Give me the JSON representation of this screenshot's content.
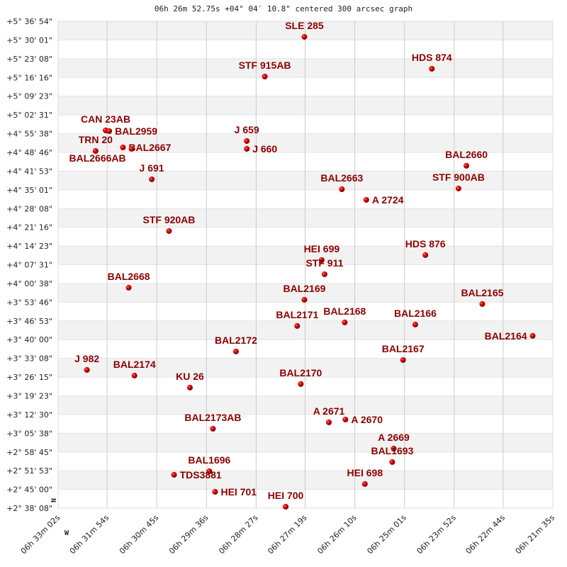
{
  "chart_data": {
    "type": "scatter",
    "title": "06h 26m 52.75s +04° 04′ 10.8\" centered 300 arcsec graph",
    "grid": true,
    "marker_color": "#dd0000",
    "label_color": "#8b0000",
    "stripe_color": "#f2f2f2",
    "grid_color": "#cccccc",
    "directions": {
      "north": "N",
      "west": "W"
    },
    "x_ticks": [
      "06h 33m 02s",
      "06h 31m 54s",
      "06h 30m 45s",
      "06h 29m 36s",
      "06h 28m 27s",
      "06h 27m 19s",
      "06h 26m 10s",
      "06h 25m 01s",
      "06h 23m 52s",
      "06h 22m 44s",
      "06h 21m 35s"
    ],
    "y_ticks": [
      "+5° 36' 54\"",
      "+5° 30' 01\"",
      "+5° 23' 08\"",
      "+5° 16' 16\"",
      "+5° 09' 23\"",
      "+5° 02' 31\"",
      "+4° 55' 38\"",
      "+4° 48' 46\"",
      "+4° 41' 53\"",
      "+4° 35' 01\"",
      "+4° 28' 08\"",
      "+4° 21' 16\"",
      "+4° 14' 23\"",
      "+4° 07' 31\"",
      "+4° 00' 38\"",
      "+3° 53' 46\"",
      "+3° 46' 53\"",
      "+3° 40' 00\"",
      "+3° 33' 08\"",
      "+3° 26' 15\"",
      "+3° 19' 23\"",
      "+3° 12' 30\"",
      "+3° 05' 38\"",
      "+2° 58' 45\"",
      "+2° 51' 53\"",
      "+2° 45' 00\"",
      "+2° 38' 08\""
    ],
    "points": [
      {
        "name": "SLE 285",
        "ra": "06h 27m 20s",
        "dec": "+5° 31' 11\""
      },
      {
        "name": "HDS 874",
        "ra": "06h 24m 23s",
        "dec": "+5° 19' 28\""
      },
      {
        "name": "STF 915AB",
        "ra": "06h 28m 15s",
        "dec": "+5° 16' 36\""
      },
      {
        "name": "CAN 23AB",
        "ra": "06h 31m 56s",
        "dec": "+4° 56' 50\""
      },
      {
        "name": "BAL2959",
        "ra": "06h 31m 51s",
        "dec": "+4° 56' 34\""
      },
      {
        "name": "TRN 20",
        "ra": "06h 32m 10s",
        "dec": "+4° 49' 17\""
      },
      {
        "name": "BAL2667",
        "ra": "06h 31m 32s",
        "dec": "+4° 50' 35\""
      },
      {
        "name": "BAL2666AB",
        "ra": "06h 31m 20s",
        "dec": "+4° 50' 04\""
      },
      {
        "name": "J 659",
        "ra": "06h 28m 40s",
        "dec": "+4° 52' 56\""
      },
      {
        "name": "J 660",
        "ra": "06h 28m 40s",
        "dec": "+4° 50' 04\""
      },
      {
        "name": "J 691",
        "ra": "06h 30m 52s",
        "dec": "+4° 38' 53\""
      },
      {
        "name": "BAL2660",
        "ra": "06h 23m 35s",
        "dec": "+4° 43' 50\""
      },
      {
        "name": "STF 900AB",
        "ra": "06h 23m 46s",
        "dec": "+4° 35' 30\""
      },
      {
        "name": "BAL2663",
        "ra": "06h 26m 28s",
        "dec": "+4° 35' 14\""
      },
      {
        "name": "A 2724",
        "ra": "06h 25m 54s",
        "dec": "+4° 31' 20\""
      },
      {
        "name": "STF 920AB",
        "ra": "06h 30m 28s",
        "dec": "+4° 19' 53\""
      },
      {
        "name": "HDS 876",
        "ra": "06h 24m 32s",
        "dec": "+4° 11' 03\""
      },
      {
        "name": "HEI 699",
        "ra": "06h 26m 56s",
        "dec": "+4° 09' 13\""
      },
      {
        "name": "STF 911",
        "ra": "06h 26m 52s",
        "dec": "+4° 04' 01\""
      },
      {
        "name": "BAL2668",
        "ra": "06h 31m 24s",
        "dec": "+3° 59' 05\""
      },
      {
        "name": "BAL2169",
        "ra": "06h 27m 20s",
        "dec": "+3° 54' 39\""
      },
      {
        "name": "BAL2165",
        "ra": "06h 23m 13s",
        "dec": "+3° 53' 06\""
      },
      {
        "name": "BAL2171",
        "ra": "06h 27m 30s",
        "dec": "+3° 45' 02\""
      },
      {
        "name": "BAL2168",
        "ra": "06h 26m 24s",
        "dec": "+3° 46' 20\""
      },
      {
        "name": "BAL2166",
        "ra": "06h 24m 46s",
        "dec": "+3° 45' 33\""
      },
      {
        "name": "BAL2164",
        "ra": "06h 22m 03s",
        "dec": "+3° 41' 23\""
      },
      {
        "name": "BAL2172",
        "ra": "06h 28m 55s",
        "dec": "+3° 35' 40\""
      },
      {
        "name": "BAL2167",
        "ra": "06h 25m 03s",
        "dec": "+3° 32' 32\""
      },
      {
        "name": "J 982",
        "ra": "06h 32m 22s",
        "dec": "+3° 28' 54\""
      },
      {
        "name": "BAL2174",
        "ra": "06h 31m 16s",
        "dec": "+3° 26' 49\""
      },
      {
        "name": "KU 26",
        "ra": "06h 29m 59s",
        "dec": "+3° 22' 24\""
      },
      {
        "name": "BAL2170",
        "ra": "06h 27m 25s",
        "dec": "+3° 23' 42\""
      },
      {
        "name": "A 2671",
        "ra": "06h 26m 46s",
        "dec": "+3° 09' 39\""
      },
      {
        "name": "A 2670",
        "ra": "06h 26m 23s",
        "dec": "+3° 10' 41\""
      },
      {
        "name": "BAL2173AB",
        "ra": "06h 29m 27s",
        "dec": "+3° 07' 18\""
      },
      {
        "name": "A 2669",
        "ra": "06h 25m 16s",
        "dec": "+3° 00' 01\""
      },
      {
        "name": "BAL1693",
        "ra": "06h 25m 18s",
        "dec": "+2° 55' 05\""
      },
      {
        "name": "BAL1696",
        "ra": "06h 29m 32s",
        "dec": "+2° 51' 42\""
      },
      {
        "name": "TDS3881",
        "ra": "06h 30m 21s",
        "dec": "+2° 50' 24\""
      },
      {
        "name": "HEI 698",
        "ra": "06h 25m 56s",
        "dec": "+2° 47' 01\""
      },
      {
        "name": "HEI 701",
        "ra": "06h 29m 24s",
        "dec": "+2° 44' 09\""
      },
      {
        "name": "HEI 700",
        "ra": "06h 27m 46s",
        "dec": "+2° 38' 41\""
      }
    ]
  }
}
